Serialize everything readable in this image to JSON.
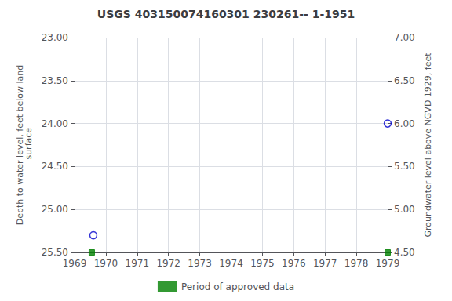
{
  "chart_data": {
    "type": "scatter",
    "title": "USGS 403150074160301 230261-- 1-1951",
    "ylabel": "Depth to water level, feet below land\n surface",
    "y2label": "Groundwater level above NGVD 1929, feet",
    "xlim": [
      1969,
      1979
    ],
    "xticks": [
      1969,
      1970,
      1971,
      1972,
      1973,
      1974,
      1975,
      1976,
      1977,
      1978,
      1979
    ],
    "ylim": [
      25.5,
      23.0
    ],
    "yticks": [
      {
        "value": 23.0,
        "label": "23.00"
      },
      {
        "value": 23.5,
        "label": "23.50"
      },
      {
        "value": 24.0,
        "label": "24.00"
      },
      {
        "value": 24.5,
        "label": "24.50"
      },
      {
        "value": 25.0,
        "label": "25.00"
      },
      {
        "value": 25.5,
        "label": "25.50"
      }
    ],
    "y2lim": [
      4.5,
      7.0
    ],
    "y2ticks": [
      {
        "value": 7.0,
        "label": "7.00"
      },
      {
        "value": 6.5,
        "label": "6.50"
      },
      {
        "value": 6.0,
        "label": "6.00"
      },
      {
        "value": 5.5,
        "label": "5.50"
      },
      {
        "value": 5.0,
        "label": "5.00"
      },
      {
        "value": 4.5,
        "label": "4.50"
      }
    ],
    "grid": true,
    "legend": "bottom",
    "series": [
      {
        "x": [
          1969.6,
          1979.0
        ],
        "values": [
          25.3,
          24.0
        ],
        "color": "#0000cc",
        "marker": "open circle"
      },
      {
        "name": "Period of approved data",
        "x": [
          1969.55,
          1979.0
        ],
        "values": [
          25.5,
          25.5
        ],
        "color": "#008000",
        "marker": "square"
      }
    ]
  }
}
